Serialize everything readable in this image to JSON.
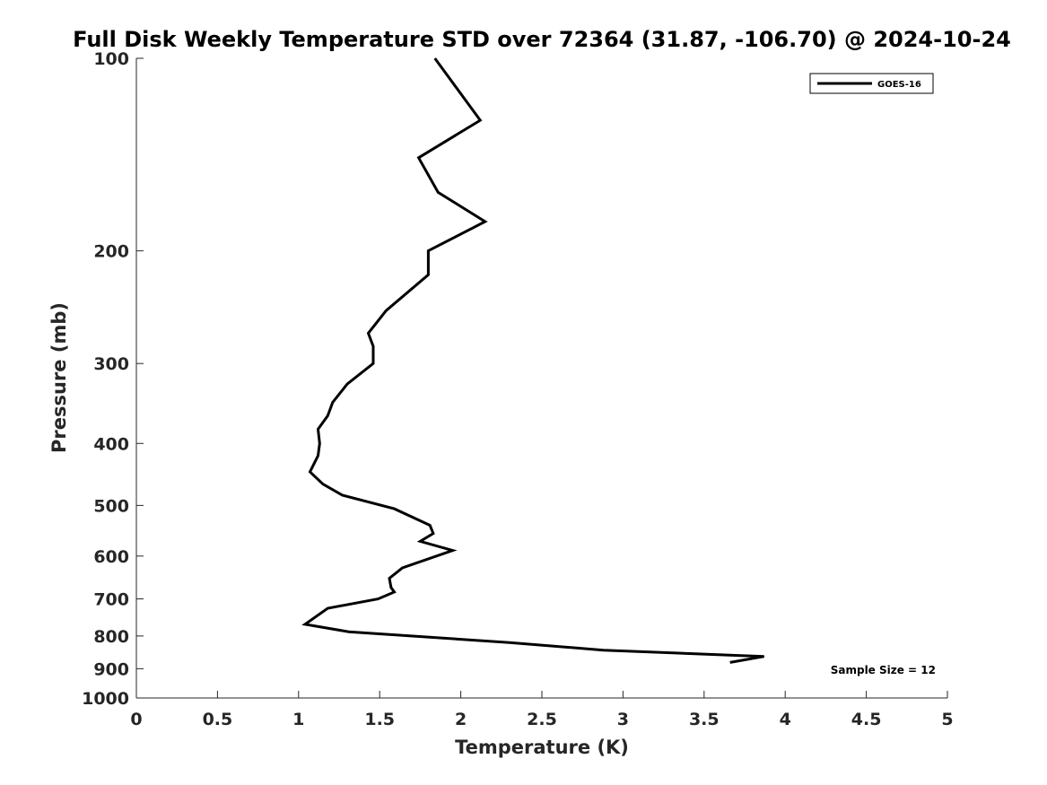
{
  "chart_data": {
    "type": "line",
    "title": "Full Disk Weekly Temperature STD over 72364 (31.87, -106.70) @ 2024-10-24",
    "xlabel": "Temperature (K)",
    "ylabel": "Pressure (mb)",
    "xlim": [
      0,
      5
    ],
    "ylim": [
      100,
      1000
    ],
    "y_scale": "log",
    "y_reversed": true,
    "grid": false,
    "legend_position": "top-right",
    "x_ticks": [
      0,
      0.5,
      1,
      1.5,
      2,
      2.5,
      3,
      3.5,
      4,
      4.5,
      5
    ],
    "x_tick_labels": [
      "0",
      "0.5",
      "1",
      "1.5",
      "2",
      "2.5",
      "3",
      "3.5",
      "4",
      "4.5",
      "5"
    ],
    "y_ticks": [
      100,
      200,
      300,
      400,
      500,
      600,
      700,
      800,
      900,
      1000
    ],
    "y_tick_labels": [
      "100",
      "200",
      "300",
      "400",
      "500",
      "600",
      "700",
      "800",
      "900",
      "1000"
    ],
    "annotation": "Sample Size = 12",
    "series": [
      {
        "name": "GOES-16",
        "color": "#000000",
        "points": [
          {
            "x": 1.84,
            "p": 100
          },
          {
            "x": 2.12,
            "p": 125
          },
          {
            "x": 1.74,
            "p": 143
          },
          {
            "x": 1.86,
            "p": 162
          },
          {
            "x": 2.15,
            "p": 180
          },
          {
            "x": 1.8,
            "p": 200
          },
          {
            "x": 1.8,
            "p": 218
          },
          {
            "x": 1.54,
            "p": 248
          },
          {
            "x": 1.43,
            "p": 269
          },
          {
            "x": 1.46,
            "p": 282
          },
          {
            "x": 1.46,
            "p": 300
          },
          {
            "x": 1.3,
            "p": 323
          },
          {
            "x": 1.21,
            "p": 345
          },
          {
            "x": 1.18,
            "p": 362
          },
          {
            "x": 1.12,
            "p": 380
          },
          {
            "x": 1.13,
            "p": 400
          },
          {
            "x": 1.12,
            "p": 418
          },
          {
            "x": 1.07,
            "p": 443
          },
          {
            "x": 1.15,
            "p": 463
          },
          {
            "x": 1.27,
            "p": 482
          },
          {
            "x": 1.59,
            "p": 506
          },
          {
            "x": 1.81,
            "p": 537
          },
          {
            "x": 1.83,
            "p": 553
          },
          {
            "x": 1.75,
            "p": 569
          },
          {
            "x": 1.95,
            "p": 588
          },
          {
            "x": 1.64,
            "p": 626
          },
          {
            "x": 1.56,
            "p": 650
          },
          {
            "x": 1.57,
            "p": 672
          },
          {
            "x": 1.59,
            "p": 683
          },
          {
            "x": 1.49,
            "p": 700
          },
          {
            "x": 1.18,
            "p": 724
          },
          {
            "x": 1.04,
            "p": 767
          },
          {
            "x": 1.31,
            "p": 788
          },
          {
            "x": 2.3,
            "p": 819
          },
          {
            "x": 2.88,
            "p": 842
          },
          {
            "x": 3.87,
            "p": 861
          },
          {
            "x": 3.66,
            "p": 880
          }
        ]
      }
    ]
  }
}
